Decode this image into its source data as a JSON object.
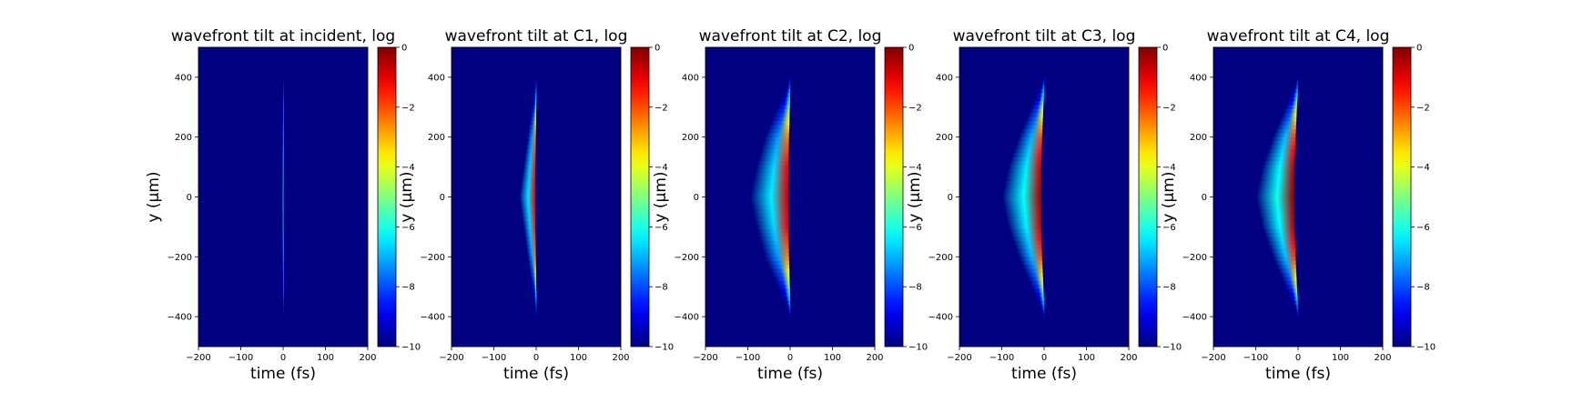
{
  "figure": {
    "panels": [
      {
        "title": "wavefront tilt at incident, log",
        "xlabel": "time (fs)",
        "ylabel": "y (μm)",
        "colorbar_label": ""
      },
      {
        "title": "wavefront tilt at C1, log",
        "xlabel": "time (fs)",
        "ylabel": "y (μm)",
        "colorbar_label": ""
      },
      {
        "title": "wavefront tilt at C2, log",
        "xlabel": "time (fs)",
        "ylabel": "y (μm)",
        "colorbar_label": ""
      },
      {
        "title": "wavefront tilt at C3, log",
        "xlabel": "time (fs)",
        "ylabel": "y (μm)",
        "colorbar_label": ""
      },
      {
        "title": "wavefront tilt at C4, log",
        "xlabel": "time (fs)",
        "ylabel": "y (μm)",
        "colorbar_label": ""
      }
    ]
  },
  "chart_data": [
    {
      "type": "heatmap",
      "title": "wavefront tilt at incident, log",
      "xlabel": "time (fs)",
      "ylabel": "y (μm)",
      "xlim": [
        -200,
        200
      ],
      "ylim": [
        -500,
        500
      ],
      "xticks": [
        -200,
        -100,
        0,
        100,
        200
      ],
      "yticks": [
        -400,
        -200,
        0,
        200,
        400
      ],
      "colormap": "jet",
      "color_range": [
        -10,
        0
      ],
      "colorbar_ticks": [
        0,
        -2,
        -4,
        -6,
        -8,
        -10
      ],
      "background_value": -10,
      "profile": [
        {
          "y": 400,
          "t_peak": 0,
          "t_min": -2,
          "value": -9
        },
        {
          "y": 300,
          "t_peak": 0,
          "t_min": -2,
          "value": -6
        },
        {
          "y": 200,
          "t_peak": 0,
          "t_min": -2,
          "value": -4.5
        },
        {
          "y": 100,
          "t_peak": 0,
          "t_min": -2,
          "value": -3
        },
        {
          "y": 0,
          "t_peak": 0,
          "t_min": -2,
          "value": -2.2
        },
        {
          "y": -100,
          "t_peak": 0,
          "t_min": -2,
          "value": -2.5
        },
        {
          "y": -200,
          "t_peak": 0,
          "t_min": -2,
          "value": -4.5
        },
        {
          "y": -300,
          "t_peak": 0,
          "t_min": -2,
          "value": -6
        },
        {
          "y": -400,
          "t_peak": 0,
          "t_min": -2,
          "value": -9
        }
      ]
    },
    {
      "type": "heatmap",
      "title": "wavefront tilt at C1, log",
      "xlabel": "time (fs)",
      "ylabel": "y (μm)",
      "xlim": [
        -200,
        200
      ],
      "ylim": [
        -500,
        500
      ],
      "xticks": [
        -200,
        -100,
        0,
        100,
        200
      ],
      "yticks": [
        -400,
        -200,
        0,
        200,
        400
      ],
      "colormap": "jet",
      "color_range": [
        -10,
        0
      ],
      "colorbar_ticks": [
        0,
        -2,
        -4,
        -6,
        -8,
        -10
      ],
      "background_value": -10,
      "profile": [
        {
          "y": 400,
          "t_peak": 0,
          "t_min": -3,
          "value": -9
        },
        {
          "y": 300,
          "t_peak": -1,
          "t_min": -10,
          "value": -5
        },
        {
          "y": 200,
          "t_peak": -2,
          "t_min": -20,
          "value": -2.5
        },
        {
          "y": 100,
          "t_peak": -3,
          "t_min": -30,
          "value": -1.5
        },
        {
          "y": 0,
          "t_peak": -3,
          "t_min": -40,
          "value": -1
        },
        {
          "y": -100,
          "t_peak": -3,
          "t_min": -30,
          "value": -1.5
        },
        {
          "y": -200,
          "t_peak": -2,
          "t_min": -20,
          "value": -2.5
        },
        {
          "y": -300,
          "t_peak": -1,
          "t_min": -10,
          "value": -5
        },
        {
          "y": -400,
          "t_peak": 0,
          "t_min": -3,
          "value": -9
        }
      ]
    },
    {
      "type": "heatmap",
      "title": "wavefront tilt at C2, log",
      "xlabel": "time (fs)",
      "ylabel": "y (μm)",
      "xlim": [
        -200,
        200
      ],
      "ylim": [
        -500,
        500
      ],
      "xticks": [
        -200,
        -100,
        0,
        100,
        200
      ],
      "yticks": [
        -400,
        -200,
        0,
        200,
        400
      ],
      "colormap": "jet",
      "color_range": [
        -10,
        0
      ],
      "colorbar_ticks": [
        0,
        -2,
        -4,
        -6,
        -8,
        -10
      ],
      "background_value": -10,
      "profile": [
        {
          "y": 400,
          "t_peak": 0,
          "t_min": -4,
          "value": -9
        },
        {
          "y": 300,
          "t_peak": -2,
          "t_min": -30,
          "value": -5
        },
        {
          "y": 200,
          "t_peak": -4,
          "t_min": -60,
          "value": -2.5
        },
        {
          "y": 100,
          "t_peak": -5,
          "t_min": -80,
          "value": -1.2
        },
        {
          "y": 0,
          "t_peak": -5,
          "t_min": -95,
          "value": -0.8
        },
        {
          "y": -100,
          "t_peak": -5,
          "t_min": -80,
          "value": -1.2
        },
        {
          "y": -200,
          "t_peak": -4,
          "t_min": -60,
          "value": -2.5
        },
        {
          "y": -300,
          "t_peak": -2,
          "t_min": -30,
          "value": -5
        },
        {
          "y": -400,
          "t_peak": 0,
          "t_min": -4,
          "value": -9
        }
      ]
    },
    {
      "type": "heatmap",
      "title": "wavefront tilt at C3, log",
      "xlabel": "time (fs)",
      "ylabel": "y (μm)",
      "xlim": [
        -200,
        200
      ],
      "ylim": [
        -500,
        500
      ],
      "xticks": [
        -200,
        -100,
        0,
        100,
        200
      ],
      "yticks": [
        -400,
        -200,
        0,
        200,
        400
      ],
      "colormap": "jet",
      "color_range": [
        -10,
        0
      ],
      "colorbar_ticks": [
        0,
        -2,
        -4,
        -6,
        -8,
        -10
      ],
      "background_value": -10,
      "profile": [
        {
          "y": 400,
          "t_peak": 0,
          "t_min": -5,
          "value": -9
        },
        {
          "y": 300,
          "t_peak": -3,
          "t_min": -30,
          "value": -4.5
        },
        {
          "y": 200,
          "t_peak": -6,
          "t_min": -60,
          "value": -2
        },
        {
          "y": 100,
          "t_peak": -8,
          "t_min": -85,
          "value": -0.8
        },
        {
          "y": 0,
          "t_peak": -8,
          "t_min": -100,
          "value": -0.4
        },
        {
          "y": -100,
          "t_peak": -8,
          "t_min": -85,
          "value": -0.8
        },
        {
          "y": -200,
          "t_peak": -6,
          "t_min": -60,
          "value": -2
        },
        {
          "y": -300,
          "t_peak": -3,
          "t_min": -30,
          "value": -4.5
        },
        {
          "y": -400,
          "t_peak": 0,
          "t_min": -5,
          "value": -9
        }
      ]
    },
    {
      "type": "heatmap",
      "title": "wavefront tilt at C4, log",
      "xlabel": "time (fs)",
      "ylabel": "y (μm)",
      "xlim": [
        -200,
        200
      ],
      "ylim": [
        -500,
        500
      ],
      "xticks": [
        -200,
        -100,
        0,
        100,
        200
      ],
      "yticks": [
        -400,
        -200,
        0,
        200,
        400
      ],
      "colormap": "jet",
      "color_range": [
        -10,
        0
      ],
      "colorbar_ticks": [
        0,
        -2,
        -4,
        -6,
        -8,
        -10
      ],
      "background_value": -10,
      "profile": [
        {
          "y": 400,
          "t_peak": 0,
          "t_min": -5,
          "value": -9
        },
        {
          "y": 300,
          "t_peak": -4,
          "t_min": -30,
          "value": -4.5
        },
        {
          "y": 200,
          "t_peak": -7,
          "t_min": -60,
          "value": -1.8
        },
        {
          "y": 100,
          "t_peak": -10,
          "t_min": -85,
          "value": -0.6
        },
        {
          "y": 0,
          "t_peak": -10,
          "t_min": -100,
          "value": -0.2
        },
        {
          "y": -100,
          "t_peak": -10,
          "t_min": -85,
          "value": -0.6
        },
        {
          "y": -200,
          "t_peak": -7,
          "t_min": -60,
          "value": -1.8
        },
        {
          "y": -300,
          "t_peak": -4,
          "t_min": -30,
          "value": -4.5
        },
        {
          "y": -400,
          "t_peak": 0,
          "t_min": -5,
          "value": -9
        }
      ]
    }
  ]
}
